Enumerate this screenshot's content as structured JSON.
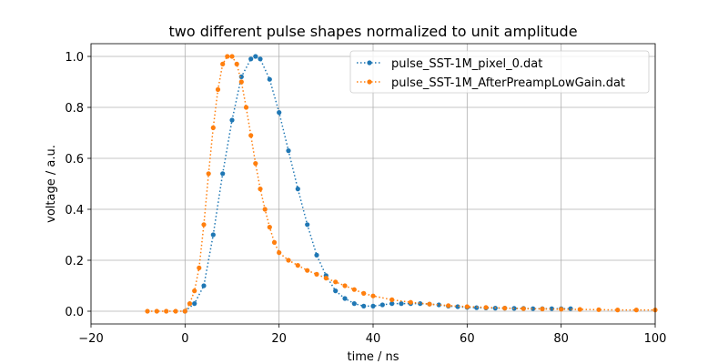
{
  "chart_data": {
    "type": "line",
    "title": "two different pulse shapes normalized to unit amplitude",
    "xlabel": "time / ns",
    "ylabel": "voltage / a.u.",
    "xlim": [
      -20,
      100
    ],
    "ylim": [
      -0.05,
      1.05
    ],
    "xticks": [
      -20,
      0,
      20,
      40,
      60,
      80,
      100
    ],
    "xtick_labels": [
      "−20",
      "0",
      "20",
      "40",
      "60",
      "80",
      "100"
    ],
    "yticks": [
      0.0,
      0.2,
      0.4,
      0.6,
      0.8,
      1.0
    ],
    "ytick_labels": [
      "0.0",
      "0.2",
      "0.4",
      "0.6",
      "0.8",
      "1.0"
    ],
    "grid": true,
    "legend_position": "upper right",
    "line_style": "dotted",
    "marker": "circle",
    "series": [
      {
        "name": "pulse_SST-1M_pixel_0.dat",
        "color": "#1f77b4",
        "x": [
          0,
          2,
          4,
          6,
          8,
          10,
          12,
          14,
          15,
          16,
          18,
          20,
          22,
          24,
          26,
          28,
          30,
          32,
          34,
          36,
          38,
          40,
          42,
          44,
          46,
          48,
          50,
          52,
          54,
          56,
          58,
          60,
          62,
          64,
          66,
          68,
          70,
          72,
          74,
          76,
          78,
          80,
          82
        ],
        "y": [
          0.0,
          0.03,
          0.1,
          0.3,
          0.54,
          0.75,
          0.92,
          0.99,
          1.0,
          0.99,
          0.91,
          0.78,
          0.63,
          0.48,
          0.34,
          0.22,
          0.14,
          0.08,
          0.05,
          0.03,
          0.02,
          0.02,
          0.025,
          0.03,
          0.03,
          0.03,
          0.03,
          0.028,
          0.025,
          0.02,
          0.018,
          0.015,
          0.014,
          0.013,
          0.012,
          0.012,
          0.011,
          0.011,
          0.01,
          0.01,
          0.01,
          0.01,
          0.01
        ]
      },
      {
        "name": "pulse_SST-1M_AfterPreampLowGain.dat",
        "color": "#ff7f0e",
        "x": [
          -8,
          -6,
          -4,
          -2,
          0,
          1,
          2,
          3,
          4,
          5,
          6,
          7,
          8,
          9,
          10,
          11,
          12,
          13,
          14,
          15,
          16,
          17,
          18,
          19,
          20,
          22,
          24,
          26,
          28,
          30,
          32,
          34,
          36,
          38,
          40,
          44,
          48,
          52,
          56,
          60,
          64,
          68,
          72,
          76,
          80,
          84,
          88,
          92,
          96,
          100
        ],
        "y": [
          0.0,
          0.0,
          0.0,
          0.0,
          0.0,
          0.03,
          0.08,
          0.17,
          0.34,
          0.54,
          0.72,
          0.87,
          0.97,
          1.0,
          1.0,
          0.97,
          0.9,
          0.8,
          0.69,
          0.58,
          0.48,
          0.4,
          0.33,
          0.27,
          0.23,
          0.2,
          0.18,
          0.16,
          0.145,
          0.13,
          0.115,
          0.1,
          0.085,
          0.07,
          0.06,
          0.045,
          0.035,
          0.028,
          0.022,
          0.018,
          0.015,
          0.012,
          0.01,
          0.009,
          0.008,
          0.007,
          0.006,
          0.005,
          0.005,
          0.005
        ]
      }
    ]
  }
}
